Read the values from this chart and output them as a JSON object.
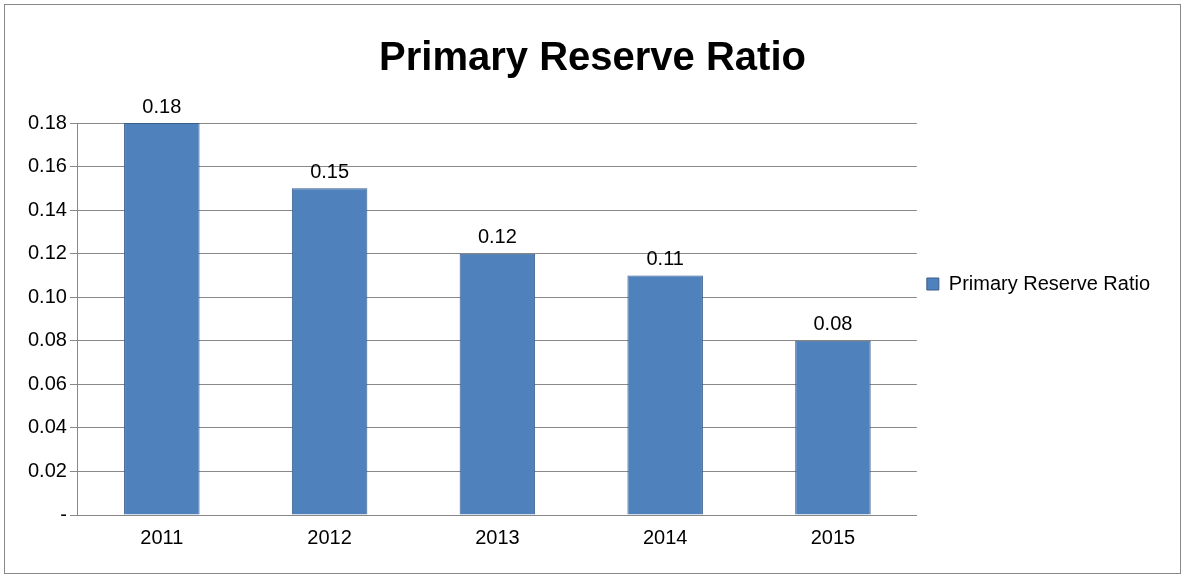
{
  "chart_data": {
    "type": "bar",
    "title": "Primary Reserve Ratio",
    "categories": [
      "2011",
      "2012",
      "2013",
      "2014",
      "2015"
    ],
    "series": [
      {
        "name": "Primary Reserve Ratio",
        "color": "#4f81bd",
        "values": [
          0.18,
          0.15,
          0.12,
          0.11,
          0.08
        ]
      }
    ],
    "ylim": [
      0,
      0.18
    ],
    "yticks": [
      {
        "value": 0,
        "label": "-"
      },
      0.02,
      0.04,
      0.06,
      0.08,
      {
        "value": 0.1,
        "label": "0.10"
      },
      0.12,
      0.14,
      0.16,
      0.18
    ],
    "grid": "y",
    "legend": "right",
    "data_labels": true
  }
}
